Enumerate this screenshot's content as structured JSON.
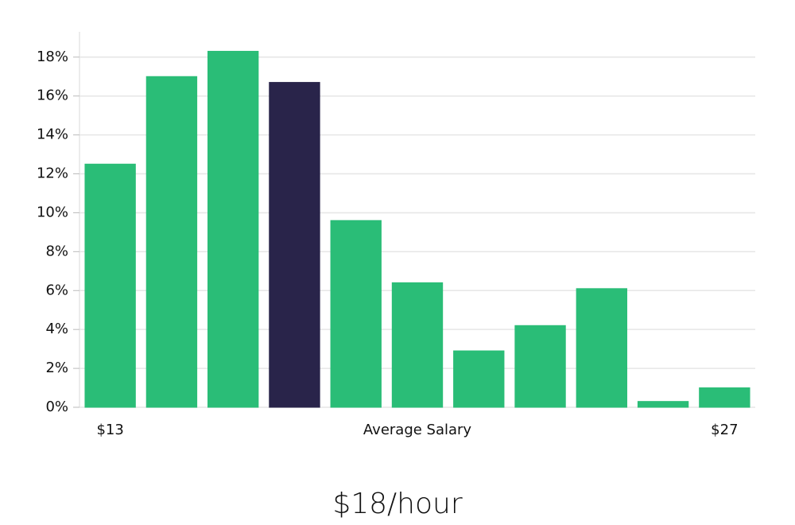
{
  "chart_data": {
    "type": "bar",
    "categories": [
      "$13",
      null,
      null,
      null,
      null,
      null,
      null,
      null,
      null,
      null,
      "$27"
    ],
    "values": [
      12.5,
      17.0,
      18.3,
      16.7,
      9.6,
      6.4,
      2.9,
      4.2,
      6.1,
      0.3,
      1.0
    ],
    "colors": [
      "#2abd77",
      "#2abd77",
      "#2abd77",
      "#29244a",
      "#2abd77",
      "#2abd77",
      "#2abd77",
      "#2abd77",
      "#2abd77",
      "#2abd77",
      "#2abd77"
    ],
    "x_label": "Average Salary",
    "caption": "$18/hour",
    "ylim": [
      0,
      19.3
    ],
    "yticks": [
      {
        "value": 0,
        "label": "0%"
      },
      {
        "value": 2,
        "label": "2%"
      },
      {
        "value": 4,
        "label": "4%"
      },
      {
        "value": 6,
        "label": "6%"
      },
      {
        "value": 8,
        "label": "8%"
      },
      {
        "value": 10,
        "label": "10%"
      },
      {
        "value": 12,
        "label": "12%"
      },
      {
        "value": 14,
        "label": "14%"
      },
      {
        "value": 16,
        "label": "16%"
      },
      {
        "value": 18,
        "label": "18%"
      }
    ],
    "grid": true
  }
}
